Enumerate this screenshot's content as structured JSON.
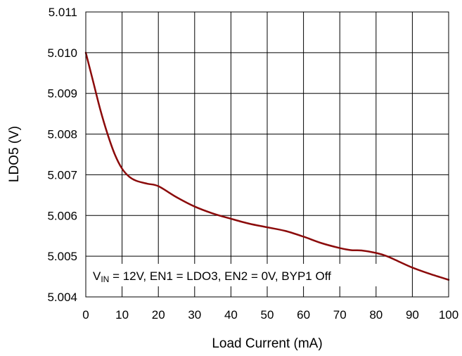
{
  "chart_data": {
    "type": "line",
    "title": "",
    "xlabel": "Load Current (mA)",
    "ylabel": "LDO5 (V)",
    "xlim": [
      0,
      100
    ],
    "ylim": [
      5.004,
      5.011
    ],
    "x_ticks": [
      0,
      10,
      20,
      30,
      40,
      50,
      60,
      70,
      80,
      90,
      100
    ],
    "y_ticks": [
      5.004,
      5.005,
      5.006,
      5.007,
      5.008,
      5.009,
      5.01,
      5.011
    ],
    "x_tick_labels": [
      "0",
      "10",
      "20",
      "30",
      "40",
      "50",
      "60",
      "70",
      "80",
      "90",
      "100"
    ],
    "y_tick_labels": [
      "5.004",
      "5.005",
      "5.006",
      "5.007",
      "5.008",
      "5.009",
      "5.010",
      "5.011"
    ],
    "grid": true,
    "legend": "none",
    "annotation": {
      "parts": [
        {
          "text": "V",
          "style": "normal"
        },
        {
          "text": "IN",
          "style": "subscript"
        },
        {
          "text": " = 12V, EN1 = LDO3, EN2 = 0V, BYP1 Off",
          "style": "normal"
        }
      ],
      "placement": "bottom-left"
    },
    "series": [
      {
        "color": "#8B0A0A",
        "x": [
          0,
          2,
          4,
          6,
          8,
          10,
          12,
          14,
          17,
          20,
          25,
          30,
          35,
          40,
          45,
          50,
          55,
          60,
          65,
          70,
          73,
          76,
          80,
          83,
          86,
          90,
          95,
          100
        ],
        "y": [
          5.01,
          5.0093,
          5.0086,
          5.008,
          5.0075,
          5.00715,
          5.00695,
          5.00685,
          5.00678,
          5.00672,
          5.00645,
          5.00622,
          5.00605,
          5.00592,
          5.0058,
          5.00571,
          5.00562,
          5.00548,
          5.00532,
          5.0052,
          5.00515,
          5.00514,
          5.00508,
          5.005,
          5.00488,
          5.00472,
          5.00456,
          5.00442
        ]
      }
    ]
  }
}
